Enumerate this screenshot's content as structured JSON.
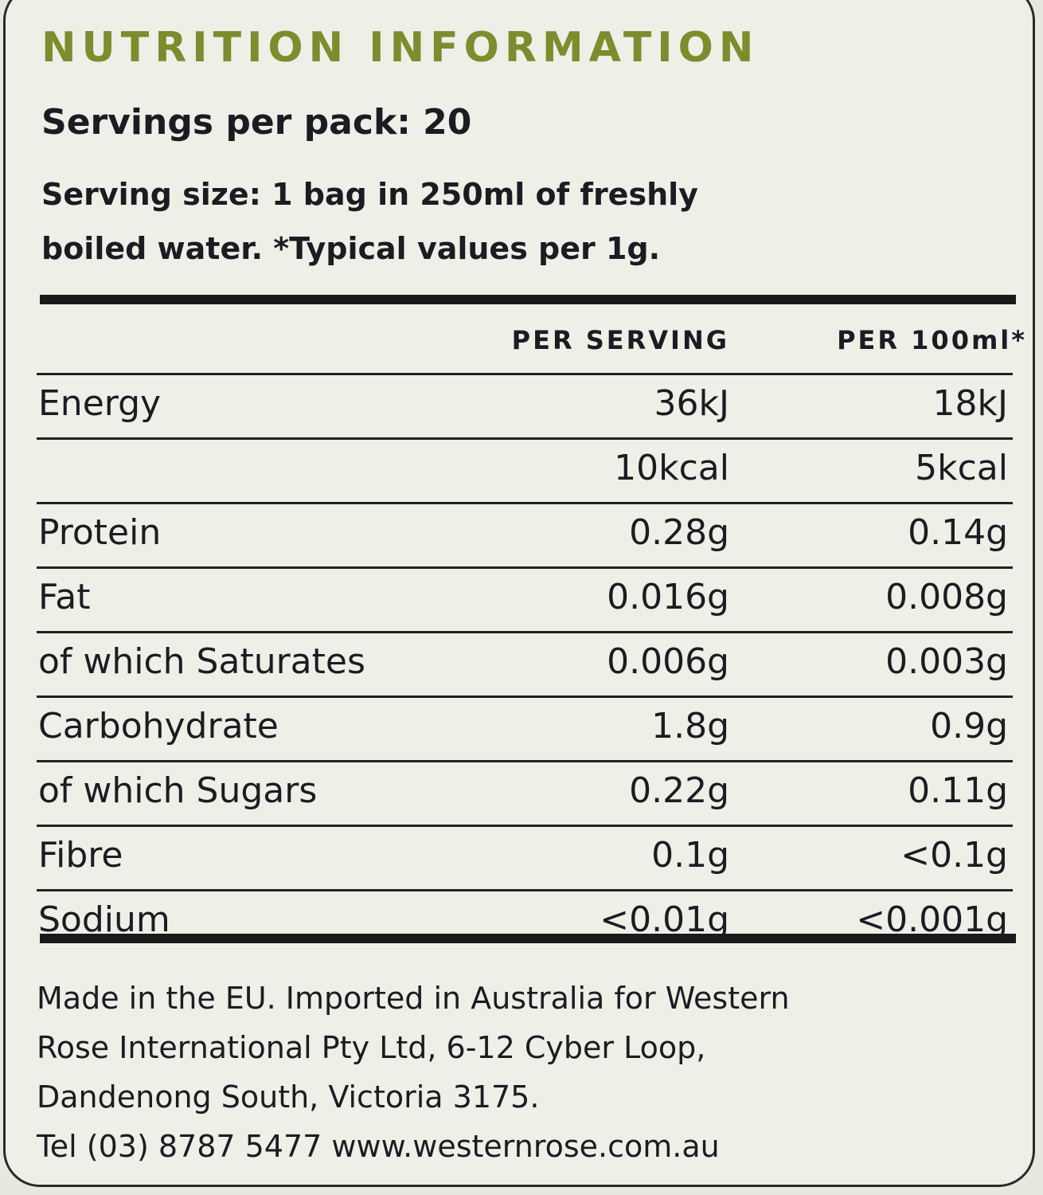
{
  "title": "NUTRITION INFORMATION",
  "servings_per_pack": "Servings per pack: 20",
  "serving_size_lines": [
    "Serving size: 1 bag in 250ml of freshly",
    "boiled water. *Typical values per 1g."
  ],
  "columns": {
    "per_serving": "PER SERVING",
    "per_100ml": "PER 100ml*"
  },
  "rows": [
    {
      "label": "Energy",
      "per_serving": "36kJ",
      "per_100ml": "18kJ"
    },
    {
      "label": "",
      "per_serving": "10kcal",
      "per_100ml": "5kcal"
    },
    {
      "label": "Protein",
      "per_serving": "0.28g",
      "per_100ml": "0.14g"
    },
    {
      "label": "Fat",
      "per_serving": "0.016g",
      "per_100ml": "0.008g"
    },
    {
      "label": "of which Saturates",
      "per_serving": "0.006g",
      "per_100ml": "0.003g"
    },
    {
      "label": "Carbohydrate",
      "per_serving": "1.8g",
      "per_100ml": "0.9g"
    },
    {
      "label": "of which Sugars",
      "per_serving": "0.22g",
      "per_100ml": "0.11g"
    },
    {
      "label": "Fibre",
      "per_serving": "0.1g",
      "per_100ml": "<0.1g"
    },
    {
      "label": "Sodium",
      "per_serving": "<0.01g",
      "per_100ml": "<0.001g"
    }
  ],
  "footer_lines": [
    "Made in the EU. Imported in Australia for Western",
    "Rose International Pty Ltd, 6-12 Cyber Loop,",
    "Dandenong South, Victoria 3175.",
    "Tel (03) 8787 5477 www.westernrose.com.au"
  ],
  "colors": {
    "title": "#7d8c2c",
    "text": "#1d1b22",
    "background": "#efeee7"
  }
}
